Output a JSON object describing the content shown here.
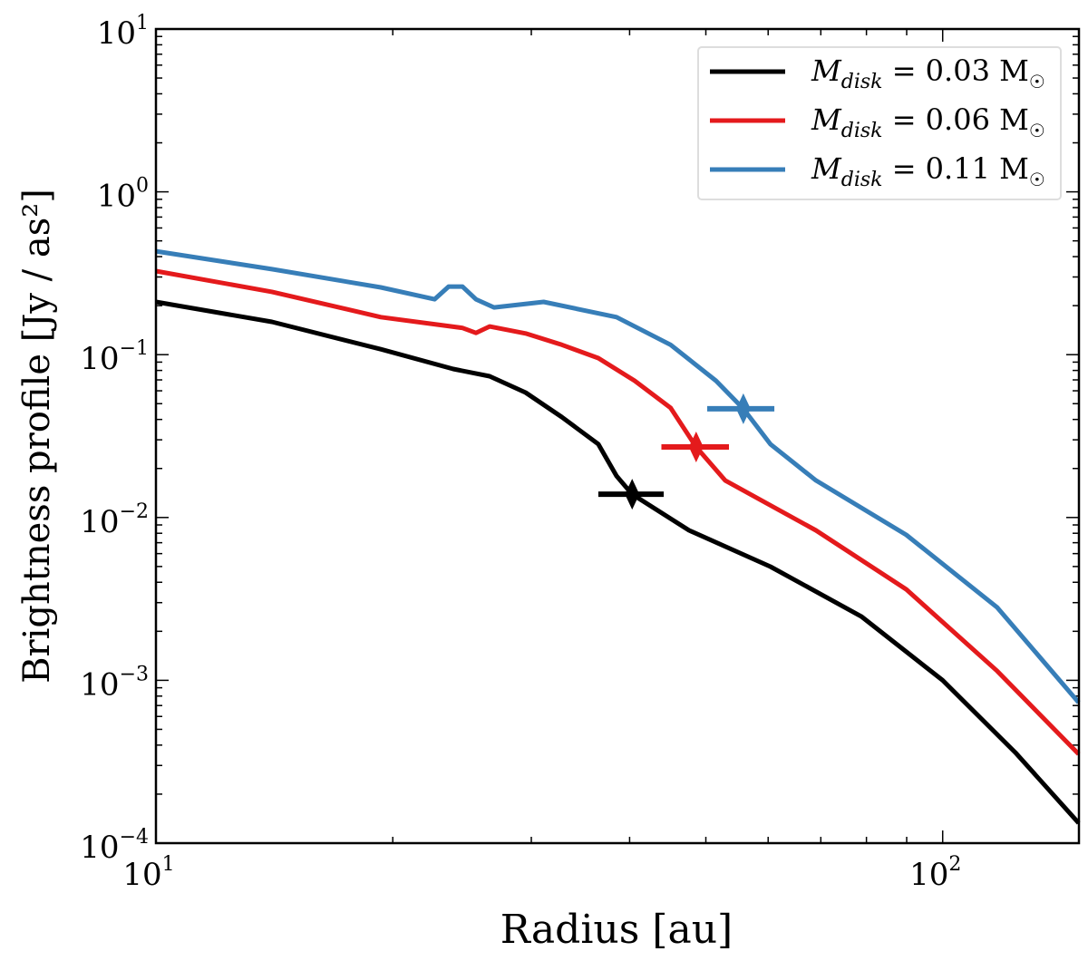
{
  "chart_data": {
    "type": "line",
    "xscale": "log",
    "yscale": "log",
    "xlabel": "Radius [au]",
    "ylabel": "Brightness profile [Jy / as²]",
    "xlim": [
      10,
      149
    ],
    "ylim": [
      0.0001,
      10
    ],
    "x_ticks": [
      {
        "value": 10,
        "label": "10",
        "exp": "1"
      },
      {
        "value": 100,
        "label": "10",
        "exp": "2"
      }
    ],
    "y_ticks": [
      {
        "value": 10,
        "label": "10",
        "exp": "1"
      },
      {
        "value": 1,
        "label": "10",
        "exp": "0"
      },
      {
        "value": 0.1,
        "label": "10",
        "exp": "−1"
      },
      {
        "value": 0.01,
        "label": "10",
        "exp": "−2"
      },
      {
        "value": 0.001,
        "label": "10",
        "exp": "−3"
      },
      {
        "value": 0.0001,
        "label": "10",
        "exp": "−4"
      }
    ],
    "grid": false,
    "legend_position": "top-right",
    "series": [
      {
        "name": "M_disk = 0.03 M☉",
        "legend": {
          "symbol": "M",
          "sub": "disk",
          "rest": " = 0.03 M",
          "sun": "☉"
        },
        "color": "#000000",
        "x": [
          10,
          14.04,
          19.31,
          23.87,
          26.55,
          29.5,
          32.8,
          36.5,
          38.5,
          40.3,
          47.6,
          60.4,
          78.8,
          100,
          123.7,
          148.9
        ],
        "y": [
          0.211,
          0.159,
          0.108,
          0.0817,
          0.0737,
          0.0585,
          0.0414,
          0.0282,
          0.018,
          0.0139,
          0.00834,
          0.00499,
          0.00247,
          0.001,
          0.00036,
          0.000133
        ],
        "marker": {
          "x": 40.3,
          "y": 0.0139,
          "xerr": [
            36.5,
            44.2
          ]
        }
      },
      {
        "name": "M_disk = 0.06 M☉",
        "legend": {
          "symbol": "M",
          "sub": "disk",
          "rest": " = 0.06 M",
          "sun": "☉"
        },
        "color": "#e41a1c",
        "x": [
          10,
          14.04,
          19.31,
          24.52,
          25.51,
          26.55,
          29.5,
          32.8,
          36.5,
          40.6,
          45.1,
          48.6,
          52.9,
          69.0,
          89.9,
          117.3,
          148.9
        ],
        "y": [
          0.326,
          0.243,
          0.17,
          0.146,
          0.136,
          0.149,
          0.135,
          0.115,
          0.0952,
          0.0691,
          0.0471,
          0.0271,
          0.0169,
          0.00834,
          0.00362,
          0.00114,
          0.000352
        ],
        "marker": {
          "x": 48.6,
          "y": 0.0271,
          "xerr": [
            43.9,
            53.5
          ]
        }
      },
      {
        "name": "M_disk = 0.11 M☉",
        "legend": {
          "symbol": "M",
          "sub": "disk",
          "rest": " = 0.11 M",
          "sun": "☉"
        },
        "color": "#377eb8",
        "x": [
          10,
          14.04,
          19.31,
          22.6,
          23.55,
          24.52,
          25.51,
          26.9,
          31.1,
          38.5,
          45.1,
          51.5,
          55.8,
          60.4,
          69.0,
          89.9,
          117.3,
          148.9
        ],
        "y": [
          0.432,
          0.335,
          0.259,
          0.219,
          0.262,
          0.262,
          0.219,
          0.195,
          0.211,
          0.17,
          0.115,
          0.0691,
          0.0465,
          0.0282,
          0.0169,
          0.00782,
          0.0028,
          0.00073
        ],
        "marker": {
          "x": 55.8,
          "y": 0.0465,
          "xerr": [
            50.2,
            61.1
          ]
        }
      }
    ]
  }
}
